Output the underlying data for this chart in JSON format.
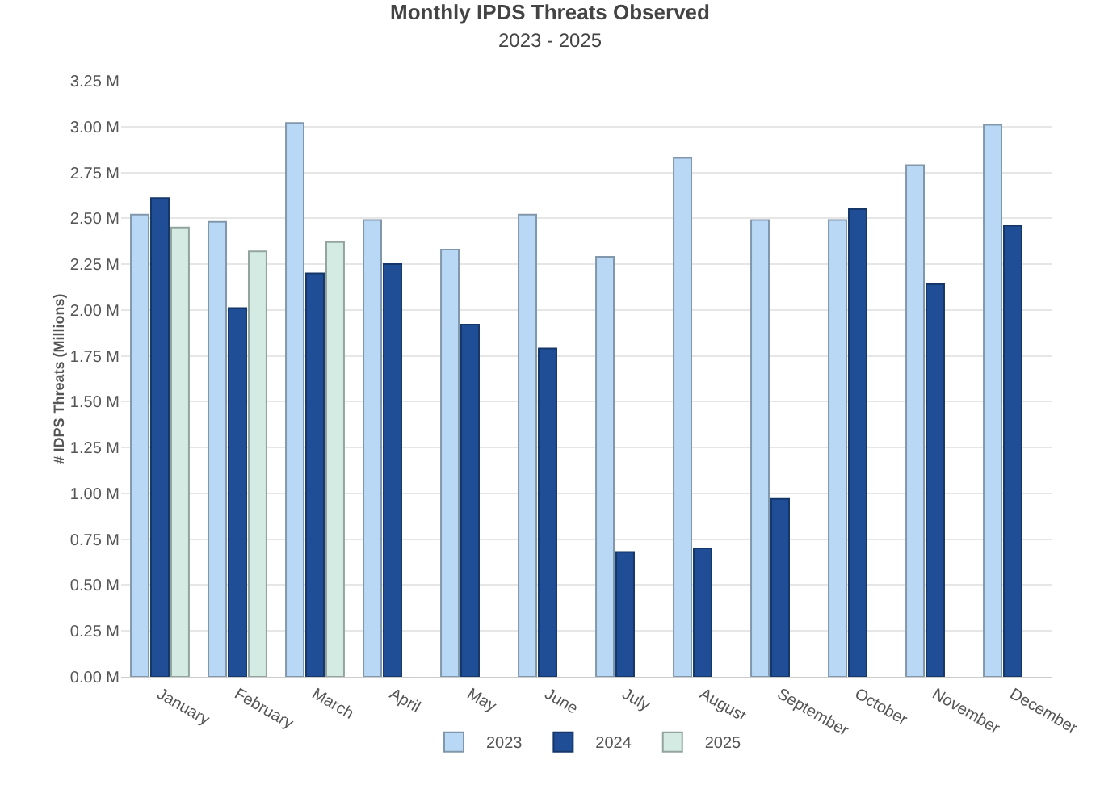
{
  "chart_data": {
    "type": "bar",
    "title": "Monthly IPDS Threats Observed",
    "subtitle": "2023 - 2025",
    "ylabel": "# IDPS Threats (Millions)",
    "categories": [
      "January",
      "February",
      "March",
      "April",
      "May",
      "June",
      "July",
      "August",
      "September",
      "October",
      "November",
      "December"
    ],
    "series": [
      {
        "name": "2023",
        "color": "#b9d8f5",
        "values": [
          2.52,
          2.48,
          3.02,
          2.49,
          2.33,
          2.52,
          2.29,
          2.83,
          2.49,
          2.49,
          2.79,
          3.01
        ]
      },
      {
        "name": "2024",
        "color": "#1f4e96",
        "values": [
          2.61,
          2.01,
          2.2,
          2.25,
          1.92,
          1.79,
          0.68,
          0.7,
          0.97,
          2.55,
          2.14,
          2.46
        ]
      },
      {
        "name": "2025",
        "color": "#d3ebe3",
        "values": [
          2.45,
          2.32,
          2.37,
          null,
          null,
          null,
          null,
          null,
          null,
          null,
          null,
          null
        ]
      }
    ],
    "ylim": [
      0,
      3.25
    ],
    "yticks": [
      {
        "value": 0,
        "label": "0.00 M"
      },
      {
        "value": 0.25,
        "label": "0.25 M"
      },
      {
        "value": 0.5,
        "label": "0.50 M"
      },
      {
        "value": 0.75,
        "label": "0.75 M"
      },
      {
        "value": 1,
        "label": "1.00 M"
      },
      {
        "value": 1.25,
        "label": "1.25 M"
      },
      {
        "value": 1.5,
        "label": "1.50 M"
      },
      {
        "value": 1.75,
        "label": "1.75 M"
      },
      {
        "value": 2,
        "label": "2.00 M"
      },
      {
        "value": 2.25,
        "label": "2.25 M"
      },
      {
        "value": 2.5,
        "label": "2.50 M"
      },
      {
        "value": 2.75,
        "label": "2.75 M"
      },
      {
        "value": 3,
        "label": "3.00 M"
      },
      {
        "value": 3.25,
        "label": "3.25 M"
      }
    ],
    "grid": "y",
    "legend": "bottom"
  }
}
